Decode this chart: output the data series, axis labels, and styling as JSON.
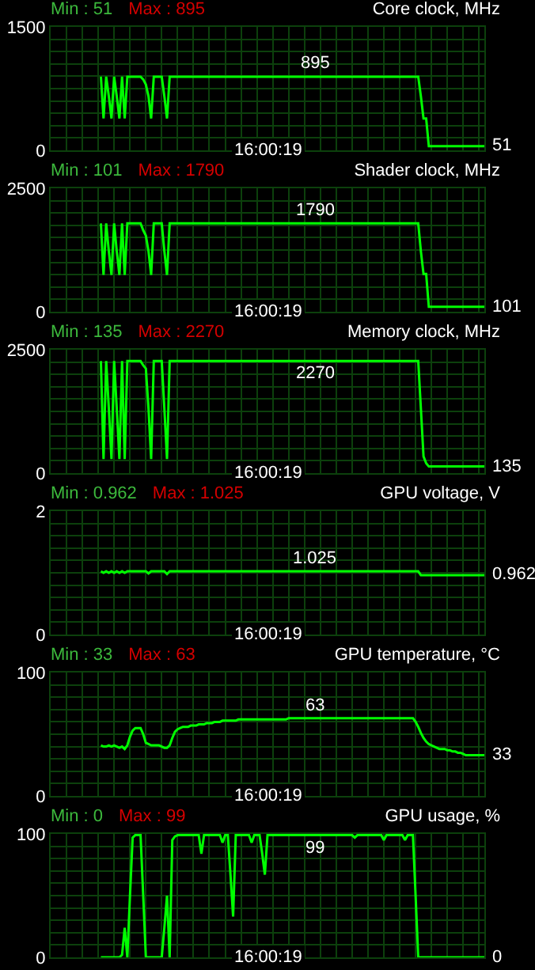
{
  "chart_data": [
    {
      "type": "line",
      "title": "Core clock, MHz",
      "annotations": [
        "Min : 51",
        "Max : 895",
        "16:00:19",
        "51",
        {
          "text": "895",
          "y": 895
        }
      ],
      "categories": [
        null,
        null,
        null,
        null,
        null,
        null,
        null,
        null,
        null,
        null,
        null,
        null,
        null,
        null,
        null,
        null,
        null,
        null,
        null,
        null,
        null,
        null,
        null,
        null,
        null,
        null,
        null,
        null,
        null,
        null,
        null,
        null,
        null,
        null,
        null,
        null,
        null,
        null,
        null,
        null,
        null,
        null,
        null,
        null,
        null,
        null,
        null,
        null,
        null,
        null,
        null,
        null,
        null,
        null,
        null,
        null,
        null,
        null,
        null,
        null,
        null,
        null,
        null,
        null,
        null,
        null,
        null,
        null,
        null,
        null,
        null,
        null,
        null,
        null,
        null,
        null,
        null,
        null,
        null,
        null,
        null,
        null,
        null,
        null,
        null,
        null,
        null,
        null,
        null,
        null,
        null,
        null,
        null,
        null,
        null,
        null,
        null,
        null,
        null,
        null,
        null,
        null,
        null,
        null,
        null,
        null,
        null,
        null,
        null,
        null,
        null,
        null,
        null,
        null,
        null,
        null,
        null,
        null,
        null,
        null,
        null,
        null,
        null,
        null,
        null,
        null,
        null,
        null,
        null,
        null,
        null,
        null,
        null,
        null,
        null,
        null,
        null,
        null,
        null,
        null,
        null,
        null,
        null,
        null,
        null,
        null,
        null,
        null,
        null,
        null,
        null,
        null,
        null,
        null,
        null,
        null,
        null,
        null,
        null,
        null,
        null,
        null,
        null,
        null,
        null
      ],
      "series": [
        {
          "color": "#00ff00",
          "values": [
            null,
            null,
            null,
            null,
            null,
            null,
            null,
            null,
            null,
            null,
            null,
            null,
            null,
            null,
            null,
            null,
            null,
            null,
            null,
            895,
            387,
            895,
            656,
            387,
            895,
            656,
            387,
            895,
            387,
            895,
            895,
            895,
            895,
            895,
            895,
            862,
            800,
            656,
            387,
            895,
            895,
            895,
            895,
            656,
            387,
            895,
            895,
            895,
            895,
            895,
            895,
            895,
            895,
            895,
            895,
            895,
            895,
            895,
            895,
            895,
            895,
            895,
            895,
            895,
            895,
            895,
            895,
            895,
            895,
            895,
            895,
            895,
            895,
            895,
            895,
            895,
            895,
            895,
            895,
            895,
            895,
            895,
            895,
            895,
            895,
            895,
            895,
            895,
            895,
            895,
            895,
            895,
            895,
            895,
            895,
            895,
            895,
            895,
            895,
            895,
            895,
            895,
            895,
            895,
            895,
            895,
            895,
            895,
            895,
            895,
            895,
            895,
            895,
            895,
            895,
            895,
            895,
            895,
            895,
            895,
            895,
            895,
            895,
            895,
            895,
            895,
            895,
            895,
            895,
            895,
            895,
            895,
            895,
            895,
            895,
            895,
            895,
            895,
            895,
            895,
            656,
            387,
            387,
            51,
            51,
            51,
            51,
            51,
            51,
            51,
            51,
            51,
            51,
            51,
            51,
            51,
            51,
            51,
            51,
            51,
            51,
            51,
            51,
            51,
            51
          ]
        }
      ],
      "ylim": [
        0,
        1500
      ],
      "yticks": [
        0,
        {
          "value": 150,
          "label": null
        },
        {
          "value": 300,
          "label": null
        },
        {
          "value": 450,
          "label": null
        },
        {
          "value": 600,
          "label": null
        },
        {
          "value": 750,
          "label": null
        },
        {
          "value": 900,
          "label": null
        },
        {
          "value": 1050,
          "label": null
        },
        {
          "value": 1200,
          "label": null
        },
        {
          "value": 1350,
          "label": null
        },
        1500
      ],
      "grid": true,
      "tick_labels": "y"
    },
    {
      "type": "line",
      "title": "Shader clock, MHz",
      "annotations": [
        "Min : 101",
        "Max : 1790",
        "16:00:19",
        "101",
        {
          "text": "1790",
          "y": 1790
        }
      ],
      "categories": [
        null,
        null,
        null,
        null,
        null,
        null,
        null,
        null,
        null,
        null,
        null,
        null,
        null,
        null,
        null,
        null,
        null,
        null,
        null,
        null,
        null,
        null,
        null,
        null,
        null,
        null,
        null,
        null,
        null,
        null,
        null,
        null,
        null,
        null,
        null,
        null,
        null,
        null,
        null,
        null,
        null,
        null,
        null,
        null,
        null,
        null,
        null,
        null,
        null,
        null,
        null,
        null,
        null,
        null,
        null,
        null,
        null,
        null,
        null,
        null,
        null,
        null,
        null,
        null,
        null,
        null,
        null,
        null,
        null,
        null,
        null,
        null,
        null,
        null,
        null,
        null,
        null,
        null,
        null,
        null,
        null,
        null,
        null,
        null,
        null,
        null,
        null,
        null,
        null,
        null,
        null,
        null,
        null,
        null,
        null,
        null,
        null,
        null,
        null,
        null,
        null,
        null,
        null,
        null,
        null,
        null,
        null,
        null,
        null,
        null,
        null,
        null,
        null,
        null,
        null,
        null,
        null,
        null,
        null,
        null,
        null,
        null,
        null,
        null,
        null,
        null,
        null,
        null,
        null,
        null,
        null,
        null,
        null,
        null,
        null,
        null,
        null,
        null,
        null,
        null,
        null,
        null,
        null,
        null,
        null,
        null,
        null,
        null,
        null,
        null,
        null,
        null,
        null,
        null,
        null,
        null,
        null,
        null,
        null,
        null,
        null,
        null,
        null,
        null,
        null
      ],
      "series": [
        {
          "color": "#00ff00",
          "values": [
            null,
            null,
            null,
            null,
            null,
            null,
            null,
            null,
            null,
            null,
            null,
            null,
            null,
            null,
            null,
            null,
            null,
            null,
            null,
            1790,
            745,
            1790,
            1224,
            745,
            1790,
            1224,
            745,
            1790,
            745,
            1790,
            1790,
            1790,
            1790,
            1790,
            1790,
            1650,
            1543,
            1224,
            745,
            1790,
            1790,
            1790,
            1790,
            1224,
            745,
            1790,
            1790,
            1790,
            1790,
            1790,
            1790,
            1790,
            1790,
            1790,
            1790,
            1790,
            1790,
            1790,
            1790,
            1790,
            1790,
            1790,
            1790,
            1790,
            1790,
            1790,
            1790,
            1790,
            1790,
            1790,
            1790,
            1790,
            1790,
            1790,
            1790,
            1790,
            1790,
            1790,
            1790,
            1790,
            1790,
            1790,
            1790,
            1790,
            1790,
            1790,
            1790,
            1790,
            1790,
            1790,
            1790,
            1790,
            1790,
            1790,
            1790,
            1790,
            1790,
            1790,
            1790,
            1790,
            1790,
            1790,
            1790,
            1790,
            1790,
            1790,
            1790,
            1790,
            1790,
            1790,
            1790,
            1790,
            1790,
            1790,
            1790,
            1790,
            1790,
            1790,
            1790,
            1790,
            1790,
            1790,
            1790,
            1790,
            1790,
            1790,
            1790,
            1790,
            1790,
            1790,
            1790,
            1790,
            1790,
            1790,
            1790,
            1790,
            1790,
            1790,
            1790,
            1790,
            1224,
            766,
            766,
            101,
            101,
            101,
            101,
            101,
            101,
            101,
            101,
            101,
            101,
            101,
            101,
            101,
            101,
            101,
            101,
            101,
            101,
            101,
            101,
            101,
            101
          ]
        }
      ],
      "ylim": [
        0,
        2500
      ],
      "yticks": [
        0,
        {
          "value": 250,
          "label": null
        },
        {
          "value": 500,
          "label": null
        },
        {
          "value": 750,
          "label": null
        },
        {
          "value": 1000,
          "label": null
        },
        {
          "value": 1250,
          "label": null
        },
        {
          "value": 1500,
          "label": null
        },
        {
          "value": 1750,
          "label": null
        },
        {
          "value": 2000,
          "label": null
        },
        {
          "value": 2250,
          "label": null
        },
        2500
      ],
      "grid": true,
      "tick_labels": "y"
    },
    {
      "type": "line",
      "title": "Memory clock, MHz",
      "annotations": [
        "Min : 135",
        "Max : 2270",
        "16:00:19",
        "135",
        {
          "text": "2270",
          "y": 2270
        }
      ],
      "categories": [
        null,
        null,
        null,
        null,
        null,
        null,
        null,
        null,
        null,
        null,
        null,
        null,
        null,
        null,
        null,
        null,
        null,
        null,
        null,
        null,
        null,
        null,
        null,
        null,
        null,
        null,
        null,
        null,
        null,
        null,
        null,
        null,
        null,
        null,
        null,
        null,
        null,
        null,
        null,
        null,
        null,
        null,
        null,
        null,
        null,
        null,
        null,
        null,
        null,
        null,
        null,
        null,
        null,
        null,
        null,
        null,
        null,
        null,
        null,
        null,
        null,
        null,
        null,
        null,
        null,
        null,
        null,
        null,
        null,
        null,
        null,
        null,
        null,
        null,
        null,
        null,
        null,
        null,
        null,
        null,
        null,
        null,
        null,
        null,
        null,
        null,
        null,
        null,
        null,
        null,
        null,
        null,
        null,
        null,
        null,
        null,
        null,
        null,
        null,
        null,
        null,
        null,
        null,
        null,
        null,
        null,
        null,
        null,
        null,
        null,
        null,
        null,
        null,
        null,
        null,
        null,
        null,
        null,
        null,
        null,
        null,
        null,
        null,
        null,
        null,
        null,
        null,
        null,
        null,
        null,
        null,
        null,
        null,
        null,
        null,
        null,
        null,
        null,
        null,
        null,
        null,
        null,
        null,
        null,
        null,
        null,
        null,
        null,
        null,
        null,
        null,
        null,
        null,
        null,
        null,
        null,
        null,
        null,
        null,
        null,
        null,
        null,
        null,
        null,
        null
      ],
      "series": [
        {
          "color": "#00ff00",
          "values": [
            null,
            null,
            null,
            null,
            null,
            null,
            null,
            null,
            null,
            null,
            null,
            null,
            null,
            null,
            null,
            null,
            null,
            null,
            null,
            2270,
            285,
            2270,
            1308,
            285,
            2270,
            1308,
            285,
            2270,
            285,
            2270,
            2270,
            2270,
            2270,
            2270,
            2270,
            2184,
            2120,
            1308,
            285,
            2270,
            2270,
            2270,
            2270,
            1308,
            285,
            2270,
            2270,
            2270,
            2270,
            2270,
            2270,
            2270,
            2270,
            2270,
            2270,
            2270,
            2270,
            2270,
            2270,
            2270,
            2270,
            2270,
            2270,
            2270,
            2270,
            2270,
            2270,
            2270,
            2270,
            2270,
            2270,
            2270,
            2270,
            2270,
            2270,
            2270,
            2270,
            2270,
            2270,
            2270,
            2270,
            2270,
            2270,
            2270,
            2270,
            2270,
            2270,
            2270,
            2270,
            2270,
            2270,
            2270,
            2270,
            2270,
            2270,
            2270,
            2270,
            2270,
            2270,
            2270,
            2270,
            2270,
            2270,
            2270,
            2270,
            2270,
            2270,
            2270,
            2270,
            2270,
            2270,
            2270,
            2270,
            2270,
            2270,
            2270,
            2270,
            2270,
            2270,
            2270,
            2270,
            2270,
            2270,
            2270,
            2270,
            2270,
            2270,
            2270,
            2270,
            2270,
            2270,
            2270,
            2270,
            2270,
            2270,
            2270,
            2270,
            2270,
            2270,
            2270,
            1308,
            338,
            200,
            135,
            135,
            135,
            135,
            135,
            135,
            135,
            135,
            135,
            135,
            135,
            135,
            135,
            135,
            135,
            135,
            135,
            135,
            135,
            135,
            135,
            135
          ]
        }
      ],
      "ylim": [
        0,
        2500
      ],
      "yticks": [
        0,
        {
          "value": 250,
          "label": null
        },
        {
          "value": 500,
          "label": null
        },
        {
          "value": 750,
          "label": null
        },
        {
          "value": 1000,
          "label": null
        },
        {
          "value": 1250,
          "label": null
        },
        {
          "value": 1500,
          "label": null
        },
        {
          "value": 1750,
          "label": null
        },
        {
          "value": 2000,
          "label": null
        },
        {
          "value": 2250,
          "label": null
        },
        2500
      ],
      "grid": true,
      "tick_labels": "y"
    },
    {
      "type": "line",
      "title": "GPU voltage, V",
      "annotations": [
        "Min : 0.962",
        "Max : 1.025",
        "16:00:19",
        "0.962",
        {
          "text": "1.025",
          "y": 1.025
        }
      ],
      "categories": [
        null,
        null,
        null,
        null,
        null,
        null,
        null,
        null,
        null,
        null,
        null,
        null,
        null,
        null,
        null,
        null,
        null,
        null,
        null,
        null,
        null,
        null,
        null,
        null,
        null,
        null,
        null,
        null,
        null,
        null,
        null,
        null,
        null,
        null,
        null,
        null,
        null,
        null,
        null,
        null,
        null,
        null,
        null,
        null,
        null,
        null,
        null,
        null,
        null,
        null,
        null,
        null,
        null,
        null,
        null,
        null,
        null,
        null,
        null,
        null,
        null,
        null,
        null,
        null,
        null,
        null,
        null,
        null,
        null,
        null,
        null,
        null,
        null,
        null,
        null,
        null,
        null,
        null,
        null,
        null,
        null,
        null,
        null,
        null,
        null,
        null,
        null,
        null,
        null,
        null,
        null,
        null,
        null,
        null,
        null,
        null,
        null,
        null,
        null,
        null,
        null,
        null,
        null,
        null,
        null,
        null,
        null,
        null,
        null,
        null,
        null,
        null,
        null,
        null,
        null,
        null,
        null,
        null,
        null,
        null,
        null,
        null,
        null,
        null,
        null,
        null,
        null,
        null,
        null,
        null,
        null,
        null,
        null,
        null,
        null,
        null,
        null,
        null,
        null,
        null,
        null,
        null,
        null,
        null,
        null,
        null,
        null,
        null,
        null,
        null,
        null,
        null,
        null,
        null,
        null,
        null,
        null,
        null,
        null,
        null,
        null,
        null,
        null,
        null,
        null
      ],
      "series": [
        {
          "color": "#00ff00",
          "values": [
            null,
            null,
            null,
            null,
            null,
            null,
            null,
            null,
            null,
            null,
            null,
            null,
            null,
            null,
            null,
            null,
            null,
            null,
            null,
            1.025,
            1.0,
            1.025,
            1.0,
            1.025,
            1.0,
            1.025,
            1.0,
            1.025,
            1.0,
            1.025,
            1.025,
            1.025,
            1.025,
            1.025,
            1.025,
            1.025,
            1.025,
            0.99,
            1.025,
            1.025,
            1.025,
            1.025,
            1.025,
            1.025,
            0.98,
            1.025,
            1.025,
            1.025,
            1.025,
            1.025,
            1.025,
            1.025,
            1.025,
            1.025,
            1.025,
            1.025,
            1.025,
            1.025,
            1.025,
            1.025,
            1.025,
            1.025,
            1.025,
            1.025,
            1.025,
            1.025,
            1.025,
            1.025,
            1.025,
            1.025,
            1.025,
            1.025,
            1.025,
            1.025,
            1.025,
            1.025,
            1.025,
            1.025,
            1.025,
            1.025,
            1.025,
            1.025,
            1.025,
            1.025,
            1.025,
            1.025,
            1.025,
            1.025,
            1.025,
            1.025,
            1.025,
            1.025,
            1.025,
            1.025,
            1.025,
            1.025,
            1.025,
            1.025,
            1.025,
            1.025,
            1.025,
            1.025,
            1.025,
            1.025,
            1.025,
            1.025,
            1.025,
            1.025,
            1.025,
            1.025,
            1.025,
            1.025,
            1.025,
            1.025,
            1.025,
            1.025,
            1.025,
            1.025,
            1.025,
            1.025,
            1.025,
            1.025,
            1.025,
            1.025,
            1.025,
            1.025,
            1.025,
            1.025,
            1.025,
            1.025,
            1.025,
            1.025,
            1.025,
            1.025,
            1.025,
            1.025,
            1.025,
            1.025,
            1.025,
            1.025,
            0.962,
            0.962,
            0.962,
            0.962,
            0.962,
            0.962,
            0.962,
            0.962,
            0.962,
            0.962,
            0.962,
            0.962,
            0.962,
            0.962,
            0.962,
            0.962,
            0.962,
            0.962,
            0.962,
            0.962,
            0.962,
            0.962,
            0.962,
            0.962,
            0.962
          ]
        }
      ],
      "ylim": [
        0,
        2
      ],
      "yticks": [
        0,
        {
          "value": 0.2,
          "label": null
        },
        {
          "value": 0.4,
          "label": null
        },
        {
          "value": 0.6,
          "label": null
        },
        {
          "value": 0.8,
          "label": null
        },
        {
          "value": 1,
          "label": null
        },
        {
          "value": 1.2,
          "label": null
        },
        {
          "value": 1.4,
          "label": null
        },
        {
          "value": 1.6,
          "label": null
        },
        {
          "value": 1.8,
          "label": null
        },
        2
      ],
      "grid": true,
      "tick_labels": "y"
    },
    {
      "type": "line",
      "title": "GPU temperature, °C",
      "annotations": [
        "Min : 33",
        "Max : 63",
        "16:00:19",
        "33",
        {
          "text": "63",
          "y": 63
        }
      ],
      "categories": [
        null,
        null,
        null,
        null,
        null,
        null,
        null,
        null,
        null,
        null,
        null,
        null,
        null,
        null,
        null,
        null,
        null,
        null,
        null,
        null,
        null,
        null,
        null,
        null,
        null,
        null,
        null,
        null,
        null,
        null,
        null,
        null,
        null,
        null,
        null,
        null,
        null,
        null,
        null,
        null,
        null,
        null,
        null,
        null,
        null,
        null,
        null,
        null,
        null,
        null,
        null,
        null,
        null,
        null,
        null,
        null,
        null,
        null,
        null,
        null,
        null,
        null,
        null,
        null,
        null,
        null,
        null,
        null,
        null,
        null,
        null,
        null,
        null,
        null,
        null,
        null,
        null,
        null,
        null,
        null,
        null,
        null,
        null,
        null,
        null,
        null,
        null,
        null,
        null,
        null,
        null,
        null,
        null,
        null,
        null,
        null,
        null,
        null,
        null,
        null,
        null,
        null,
        null,
        null,
        null,
        null,
        null,
        null,
        null,
        null,
        null,
        null,
        null,
        null,
        null,
        null,
        null,
        null,
        null,
        null,
        null,
        null,
        null,
        null,
        null,
        null,
        null,
        null,
        null,
        null,
        null,
        null,
        null,
        null,
        null,
        null,
        null,
        null,
        null,
        null,
        null,
        null,
        null,
        null,
        null,
        null,
        null,
        null,
        null,
        null,
        null,
        null,
        null,
        null,
        null,
        null,
        null,
        null,
        null,
        null,
        null,
        null,
        null,
        null,
        null
      ],
      "series": [
        {
          "color": "#00ff00",
          "values": [
            null,
            null,
            null,
            null,
            null,
            null,
            null,
            null,
            null,
            null,
            null,
            null,
            null,
            null,
            null,
            null,
            null,
            null,
            null,
            41,
            40,
            40,
            41,
            40,
            41,
            40,
            39,
            40,
            38,
            41,
            48,
            53,
            55,
            55,
            55,
            50,
            43,
            42,
            41,
            41,
            41,
            41,
            40,
            39,
            39,
            41,
            47,
            52,
            54,
            55,
            56,
            56,
            56,
            57,
            57,
            57,
            58,
            58,
            58,
            59,
            59,
            59,
            60,
            60,
            60,
            61,
            61,
            61,
            61,
            61,
            61,
            62,
            62,
            62,
            62,
            62,
            62,
            62,
            62,
            62,
            62,
            62,
            62,
            62,
            62,
            62,
            62,
            62,
            62,
            62,
            63,
            63,
            63,
            63,
            63,
            63,
            63,
            63,
            63,
            63,
            63,
            63,
            63,
            63,
            63,
            63,
            63,
            63,
            63,
            63,
            63,
            63,
            63,
            63,
            63,
            63,
            63,
            63,
            63,
            63,
            63,
            63,
            63,
            63,
            63,
            63,
            63,
            63,
            63,
            63,
            63,
            63,
            63,
            63,
            63,
            63,
            63,
            63,
            60,
            56,
            51,
            47,
            44,
            42,
            41,
            40,
            39,
            38,
            38,
            38,
            37,
            37,
            36,
            36,
            35,
            35,
            34,
            33,
            33,
            33,
            33,
            33,
            33,
            33,
            33
          ]
        }
      ],
      "ylim": [
        0,
        100
      ],
      "yticks": [
        0,
        {
          "value": 10,
          "label": null
        },
        {
          "value": 20,
          "label": null
        },
        {
          "value": 30,
          "label": null
        },
        {
          "value": 40,
          "label": null
        },
        {
          "value": 50,
          "label": null
        },
        {
          "value": 60,
          "label": null
        },
        {
          "value": 70,
          "label": null
        },
        {
          "value": 80,
          "label": null
        },
        {
          "value": 90,
          "label": null
        },
        100
      ],
      "grid": true,
      "tick_labels": "y"
    },
    {
      "type": "line",
      "title": "GPU usage, %",
      "annotations": [
        "Min : 0",
        "Max : 99",
        "16:00:19",
        "0",
        {
          "text": "99",
          "y": 99
        }
      ],
      "categories": [
        null,
        null,
        null,
        null,
        null,
        null,
        null,
        null,
        null,
        null,
        null,
        null,
        null,
        null,
        null,
        null,
        null,
        null,
        null,
        null,
        null,
        null,
        null,
        null,
        null,
        null,
        null,
        null,
        null,
        null,
        null,
        null,
        null,
        null,
        null,
        null,
        null,
        null,
        null,
        null,
        null,
        null,
        null,
        null,
        null,
        null,
        null,
        null,
        null,
        null,
        null,
        null,
        null,
        null,
        null,
        null,
        null,
        null,
        null,
        null,
        null,
        null,
        null,
        null,
        null,
        null,
        null,
        null,
        null,
        null,
        null,
        null,
        null,
        null,
        null,
        null,
        null,
        null,
        null,
        null,
        null,
        null,
        null,
        null,
        null,
        null,
        null,
        null,
        null,
        null,
        null,
        null,
        null,
        null,
        null,
        null,
        null,
        null,
        null,
        null,
        null,
        null,
        null,
        null,
        null,
        null,
        null,
        null,
        null,
        null,
        null,
        null,
        null,
        null,
        null,
        null,
        null,
        null,
        null,
        null,
        null,
        null,
        null,
        null,
        null,
        null,
        null,
        null,
        null,
        null,
        null,
        null,
        null,
        null,
        null,
        null,
        null,
        null,
        null,
        null,
        null,
        null,
        null,
        null,
        null,
        null,
        null,
        null,
        null,
        null,
        null,
        null,
        null,
        null,
        null,
        null,
        null,
        null,
        null,
        null,
        null,
        null,
        null,
        null,
        null
      ],
      "series": [
        {
          "color": "#00ff00",
          "values": [
            null,
            null,
            null,
            null,
            null,
            null,
            null,
            null,
            null,
            null,
            null,
            null,
            null,
            null,
            null,
            null,
            null,
            null,
            null,
            0,
            0,
            0,
            0,
            0,
            0,
            0,
            0,
            2,
            24,
            0,
            50,
            97,
            99,
            99,
            99,
            50,
            0,
            0,
            0,
            0,
            0,
            0,
            0,
            24,
            50,
            0,
            95,
            98,
            99,
            99,
            99,
            99,
            99,
            99,
            99,
            99,
            99,
            84,
            99,
            99,
            99,
            99,
            99,
            99,
            99,
            93,
            99,
            99,
            67,
            33,
            99,
            99,
            99,
            99,
            99,
            99,
            93,
            99,
            99,
            99,
            84,
            67,
            99,
            99,
            99,
            99,
            99,
            99,
            99,
            99,
            99,
            99,
            99,
            99,
            99,
            99,
            99,
            99,
            99,
            99,
            99,
            99,
            99,
            99,
            99,
            99,
            99,
            99,
            99,
            99,
            99,
            99,
            99,
            99,
            99,
            97,
            99,
            99,
            99,
            99,
            99,
            99,
            99,
            99,
            99,
            99,
            95,
            99,
            99,
            99,
            99,
            99,
            99,
            99,
            95,
            99,
            99,
            99,
            50,
            0,
            0,
            0,
            0,
            0,
            0,
            0,
            0,
            0,
            0,
            0,
            0,
            0,
            0,
            0,
            0,
            0,
            0,
            0,
            0,
            0,
            0,
            0,
            0,
            0,
            0
          ]
        }
      ],
      "ylim": [
        0,
        100
      ],
      "yticks": [
        0,
        {
          "value": 10,
          "label": null
        },
        {
          "value": 20,
          "label": null
        },
        {
          "value": 30,
          "label": null
        },
        {
          "value": 40,
          "label": null
        },
        {
          "value": 50,
          "label": null
        },
        {
          "value": 60,
          "label": null
        },
        {
          "value": 70,
          "label": null
        },
        {
          "value": 80,
          "label": null
        },
        {
          "value": 90,
          "label": null
        },
        100
      ],
      "grid": true,
      "tick_labels": "y"
    }
  ]
}
